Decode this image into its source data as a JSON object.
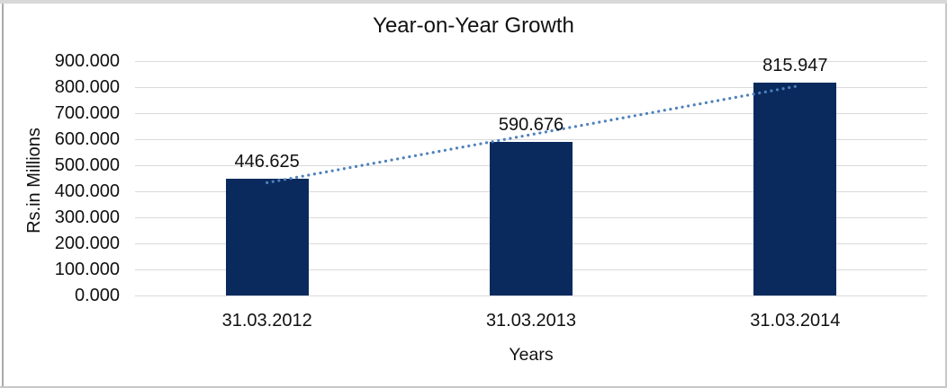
{
  "chart_data": {
    "type": "bar",
    "title": "Year-on-Year Growth",
    "xlabel": "Years",
    "ylabel": "Rs.in Millions",
    "categories": [
      "31.03.2012",
      "31.03.2013",
      "31.03.2014"
    ],
    "values": [
      446.625,
      590.676,
      815.947
    ],
    "value_labels": [
      "446.625",
      "590.676",
      "815.947"
    ],
    "yticks": [
      {
        "value": 0,
        "label": "0.000"
      },
      {
        "value": 100,
        "label": "100.000"
      },
      {
        "value": 200,
        "label": "200.000"
      },
      {
        "value": 300,
        "label": "300.000"
      },
      {
        "value": 400,
        "label": "400.000"
      },
      {
        "value": 500,
        "label": "500.000"
      },
      {
        "value": 600,
        "label": "600.000"
      },
      {
        "value": 700,
        "label": "700.000"
      },
      {
        "value": 800,
        "label": "800.000"
      },
      {
        "value": 900,
        "label": "900.000"
      }
    ],
    "ylim": [
      0,
      900
    ],
    "grid": true,
    "legend": "none",
    "trendline": {
      "type": "linear",
      "style": "dotted"
    },
    "colors": {
      "bar": "#0a2a5e",
      "trendline": "#4e81bd",
      "gridline": "#d9d9d9",
      "text": "#111111",
      "frame": "#c8c8c8"
    }
  }
}
